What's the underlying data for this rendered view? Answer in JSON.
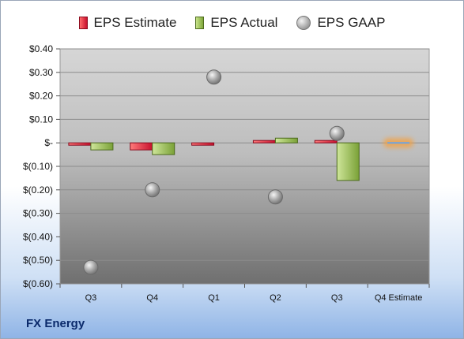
{
  "company": "FX Energy",
  "colors": {
    "estimate": "#d9252b",
    "actual": "#8ab04a",
    "gaap": "#a9a9a9",
    "forecast_glow": "#f0a34a"
  },
  "chart_data": {
    "type": "bar",
    "categories": [
      "Q3",
      "Q4",
      "Q1",
      "Q2",
      "Q3",
      "Q4 Estimate"
    ],
    "series": [
      {
        "name": "EPS Estimate",
        "values": [
          -0.01,
          -0.03,
          -0.01,
          0.0,
          0.01,
          0.0
        ]
      },
      {
        "name": "EPS Actual",
        "values": [
          -0.03,
          -0.05,
          null,
          0.02,
          -0.16,
          null
        ]
      },
      {
        "name": "EPS GAAP",
        "values": [
          -0.53,
          -0.2,
          0.28,
          -0.23,
          0.04,
          null
        ]
      }
    ],
    "ylim": [
      -0.6,
      0.4
    ],
    "y_ticks": [
      0.4,
      0.3,
      0.2,
      0.1,
      0.0,
      -0.1,
      -0.2,
      -0.3,
      -0.4,
      -0.5,
      -0.6
    ],
    "y_tick_labels": [
      "$0.40",
      "$0.30",
      "$0.20",
      "$0.10",
      "$-",
      "$(0.10)",
      "$(0.20)",
      "$(0.30)",
      "$(0.40)",
      "$(0.50)",
      "$(0.60)"
    ],
    "grid": true,
    "legend": "top"
  }
}
